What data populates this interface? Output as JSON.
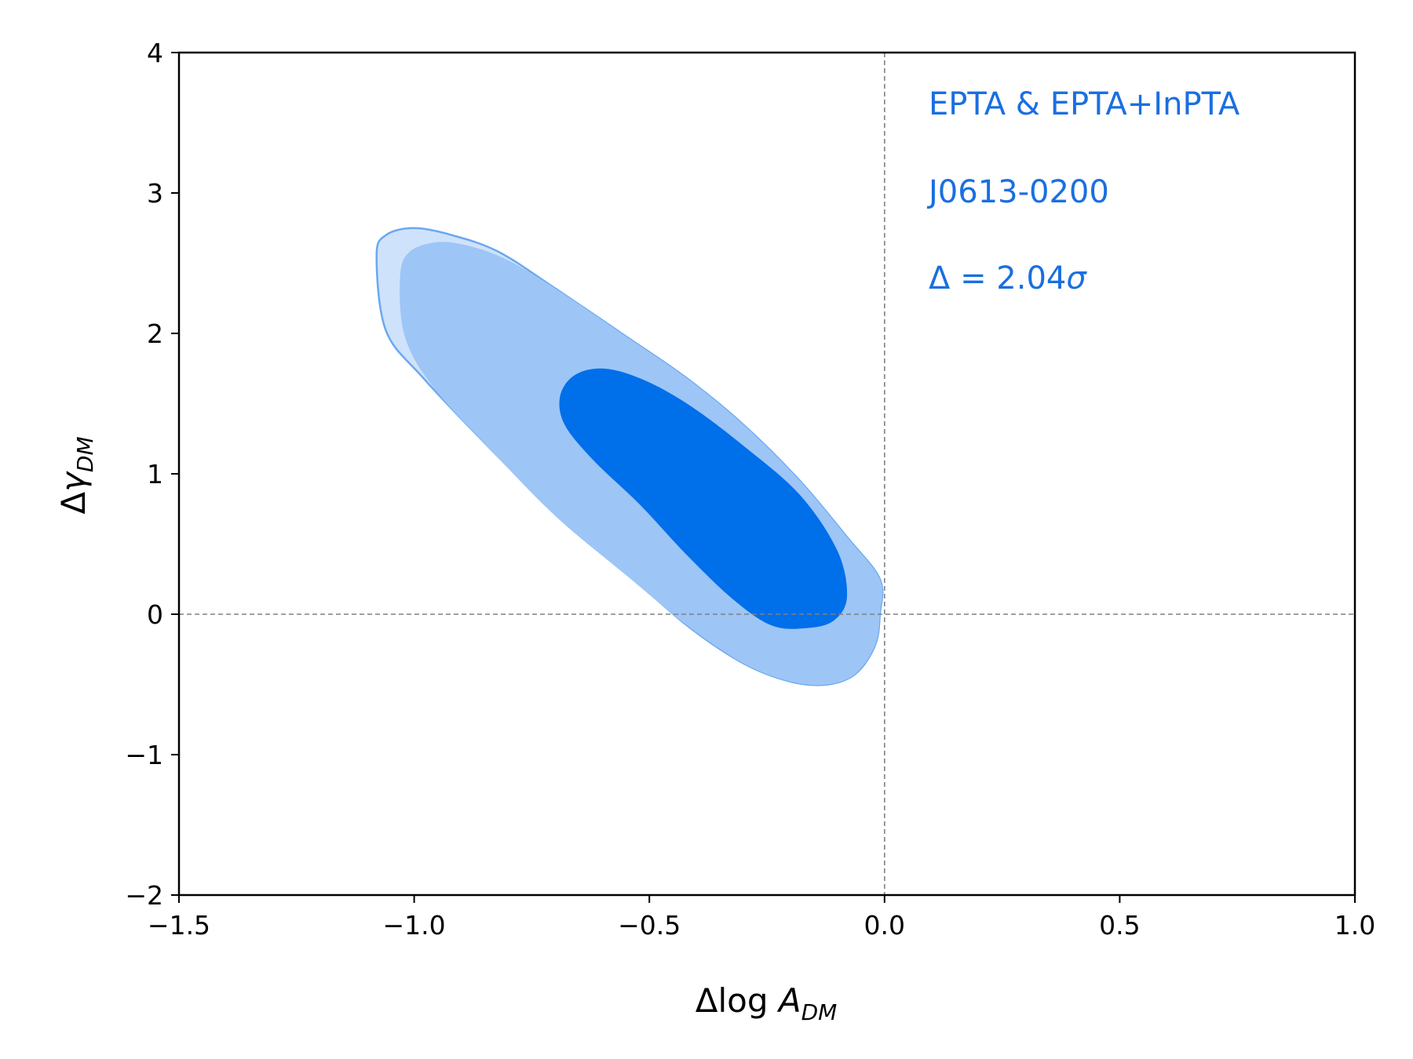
{
  "chart_data": {
    "type": "contour",
    "xlabel": "Δlog A_DM",
    "ylabel": "Δγ_DM",
    "xlim": [
      -1.5,
      1.0
    ],
    "ylim": [
      -2,
      4
    ],
    "xticks": [
      "−1.5",
      "−1.0",
      "−0.5",
      "0.0",
      "0.5",
      "1.0"
    ],
    "xtick_values": [
      -1.5,
      -1.0,
      -0.5,
      0.0,
      0.5,
      1.0
    ],
    "yticks": [
      "−2",
      "−1",
      "0",
      "1",
      "2",
      "3",
      "4"
    ],
    "ytick_values": [
      -2,
      -1,
      0,
      1,
      2,
      3,
      4
    ],
    "grid": false,
    "reference_lines": {
      "x": 0.0,
      "y": 0.0,
      "style": "dashed",
      "color": "#808080"
    },
    "annotations": [
      "EPTA & EPTA+InPTA",
      "J0613-0200",
      "Δ = 2.04σ"
    ],
    "colors": {
      "outer_light": "#cfe2fb",
      "outer_fill": "#9dc5f6",
      "outer_edge": "#6aa8f0",
      "inner_fill": "#006fea",
      "annotation": "#1a6fe0"
    },
    "contours": [
      {
        "level": "outer-light",
        "points": [
          [
            -1.08,
            2.55
          ],
          [
            -1.06,
            2.7
          ],
          [
            -1.0,
            2.75
          ],
          [
            -0.92,
            2.7
          ],
          [
            -0.82,
            2.58
          ],
          [
            -0.7,
            2.32
          ],
          [
            -0.55,
            1.98
          ],
          [
            -0.42,
            1.68
          ],
          [
            -0.3,
            1.35
          ],
          [
            -0.18,
            0.95
          ],
          [
            -0.08,
            0.55
          ],
          [
            -0.01,
            0.25
          ],
          [
            -0.01,
            0.0
          ],
          [
            -0.02,
            -0.22
          ],
          [
            -0.06,
            -0.42
          ],
          [
            -0.12,
            -0.5
          ],
          [
            -0.2,
            -0.48
          ],
          [
            -0.3,
            -0.35
          ],
          [
            -0.42,
            -0.08
          ],
          [
            -0.55,
            0.3
          ],
          [
            -0.7,
            0.72
          ],
          [
            -0.85,
            1.22
          ],
          [
            -0.98,
            1.68
          ],
          [
            -1.06,
            2.02
          ]
        ]
      },
      {
        "level": "outer",
        "points": [
          [
            -1.03,
            2.4
          ],
          [
            -1.01,
            2.58
          ],
          [
            -0.95,
            2.65
          ],
          [
            -0.88,
            2.62
          ],
          [
            -0.8,
            2.52
          ],
          [
            -0.7,
            2.32
          ],
          [
            -0.55,
            1.98
          ],
          [
            -0.42,
            1.68
          ],
          [
            -0.3,
            1.35
          ],
          [
            -0.18,
            0.95
          ],
          [
            -0.08,
            0.55
          ],
          [
            -0.01,
            0.25
          ],
          [
            -0.01,
            0.0
          ],
          [
            -0.02,
            -0.22
          ],
          [
            -0.06,
            -0.42
          ],
          [
            -0.12,
            -0.5
          ],
          [
            -0.2,
            -0.48
          ],
          [
            -0.3,
            -0.35
          ],
          [
            -0.42,
            -0.08
          ],
          [
            -0.55,
            0.28
          ],
          [
            -0.7,
            0.7
          ],
          [
            -0.84,
            1.18
          ],
          [
            -0.96,
            1.62
          ],
          [
            -1.02,
            1.98
          ]
        ]
      },
      {
        "level": "inner",
        "points": [
          [
            -0.69,
            1.55
          ],
          [
            -0.66,
            1.7
          ],
          [
            -0.6,
            1.75
          ],
          [
            -0.52,
            1.68
          ],
          [
            -0.42,
            1.5
          ],
          [
            -0.3,
            1.2
          ],
          [
            -0.18,
            0.85
          ],
          [
            -0.1,
            0.45
          ],
          [
            -0.08,
            0.12
          ],
          [
            -0.11,
            -0.05
          ],
          [
            -0.17,
            -0.1
          ],
          [
            -0.24,
            -0.08
          ],
          [
            -0.32,
            0.1
          ],
          [
            -0.42,
            0.42
          ],
          [
            -0.52,
            0.78
          ],
          [
            -0.62,
            1.1
          ],
          [
            -0.68,
            1.35
          ]
        ]
      }
    ]
  }
}
